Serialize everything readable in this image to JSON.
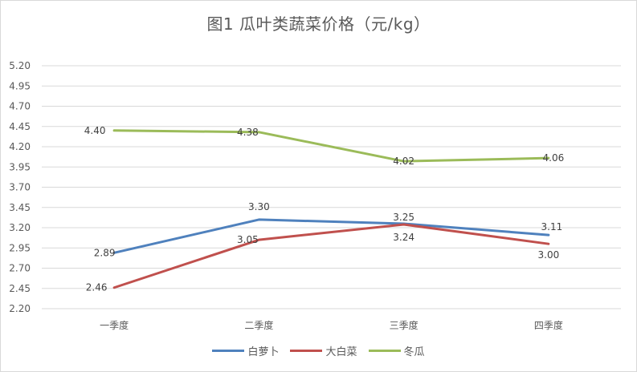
{
  "chart_data": {
    "type": "line",
    "title": "图1  瓜叶类蔬菜价格（元/kg）",
    "categories": [
      "一季度",
      "二季度",
      "三季度",
      "四季度"
    ],
    "yticks": [
      "5.20",
      "4.95",
      "4.70",
      "4.45",
      "4.20",
      "3.95",
      "3.70",
      "3.45",
      "3.20",
      "2.95",
      "2.70",
      "2.45",
      "2.20"
    ],
    "ylim": [
      2.2,
      5.2
    ],
    "grid": true,
    "legend_position": "bottom",
    "series": [
      {
        "name": "白萝卜",
        "color": "#4f81bd",
        "values": [
          2.89,
          3.3,
          3.25,
          3.11
        ],
        "labels": [
          "2.89",
          "3.30",
          "3.25",
          "3.11"
        ]
      },
      {
        "name": "大白菜",
        "color": "#c0504d",
        "values": [
          2.46,
          3.05,
          3.24,
          3.0
        ],
        "labels": [
          "2.46",
          "3.05",
          "3.24",
          "3.00"
        ]
      },
      {
        "name": "冬瓜",
        "color": "#9bbb59",
        "values": [
          4.4,
          4.38,
          4.02,
          4.06
        ],
        "labels": [
          "4.40",
          "4.38",
          "4.02",
          "4.06"
        ]
      }
    ]
  }
}
